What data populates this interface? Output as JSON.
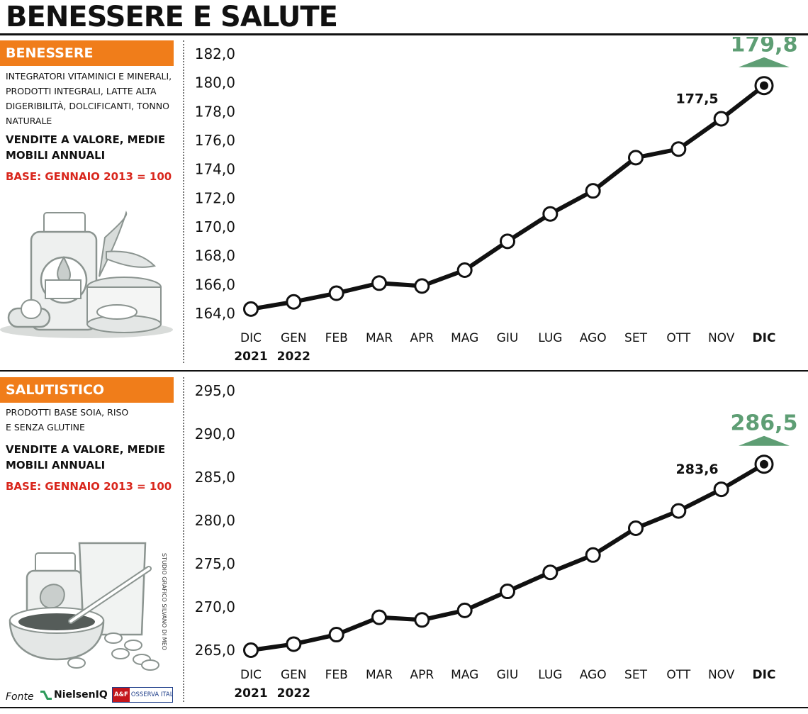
{
  "title": "BENESSERE E SALUTE",
  "source_label": "Fonte",
  "source_nielsen": "NielsenIQ",
  "source_osserva_mark": "A&F",
  "source_osserva": "OSSERVA ITALIA",
  "credit": "STUDIO GRAFICO SILVANO DI MEO",
  "colors": {
    "accent": "#f07d1a",
    "base_text": "#d9261c",
    "highlight": "#5e9e74",
    "line": "#111111"
  },
  "panels": [
    {
      "tag": "BENESSERE",
      "description": "INTEGRATORI VITAMINICI E MINERALI, PRODOTTI INTEGRALI, LATTE ALTA DIGERIBILITÀ, DOLCIFICANTI, TONNO NATURALE",
      "subtitle": "VENDITE A VALORE, MEDIE MOBILI ANNUALI",
      "base": "BASE: GENNAIO 2013 = 100"
    },
    {
      "tag": "SALUTISTICO",
      "description": "PRODOTTI BASE SOIA, RISO E SENZA GLUTINE",
      "subtitle": "VENDITE A VALORE, MEDIE MOBILI ANNUALI",
      "base": "BASE: GENNAIO 2013 = 100"
    }
  ],
  "chart_data": [
    {
      "type": "line",
      "x": [
        "DIC 2021",
        "GEN 2022",
        "FEB",
        "MAR",
        "APR",
        "MAG",
        "GIU",
        "LUG",
        "AGO",
        "SET",
        "OTT",
        "NOV",
        "DIC"
      ],
      "x_labels": [
        [
          "DIC",
          "2021"
        ],
        [
          "GEN",
          "2022"
        ],
        [
          "FEB"
        ],
        [
          "MAR"
        ],
        [
          "APR"
        ],
        [
          "MAG"
        ],
        [
          "GIU"
        ],
        [
          "LUG"
        ],
        [
          "AGO"
        ],
        [
          "SET"
        ],
        [
          "OTT"
        ],
        [
          "NOV"
        ],
        [
          "DIC"
        ]
      ],
      "values": [
        164.3,
        164.8,
        165.4,
        166.1,
        165.9,
        167.0,
        169.0,
        170.9,
        172.5,
        174.8,
        175.4,
        177.5,
        179.8
      ],
      "yticks": [
        "182,0",
        "180,0",
        "178,0",
        "176,0",
        "174,0",
        "172,0",
        "170,0",
        "168,0",
        "166,0",
        "164,0"
      ],
      "ylim": [
        164,
        182
      ],
      "labels": {
        "prev": "177,5",
        "last": "179,8"
      },
      "grid": false
    },
    {
      "type": "line",
      "x": [
        "DIC 2021",
        "GEN 2022",
        "FEB",
        "MAR",
        "APR",
        "MAG",
        "GIU",
        "LUG",
        "AGO",
        "SET",
        "OTT",
        "NOV",
        "DIC"
      ],
      "x_labels": [
        [
          "DIC",
          "2021"
        ],
        [
          "GEN",
          "2022"
        ],
        [
          "FEB"
        ],
        [
          "MAR"
        ],
        [
          "APR"
        ],
        [
          "MAG"
        ],
        [
          "GIU"
        ],
        [
          "LUG"
        ],
        [
          "AGO"
        ],
        [
          "SET"
        ],
        [
          "OTT"
        ],
        [
          "NOV"
        ],
        [
          "DIC"
        ]
      ],
      "values": [
        265.0,
        265.7,
        266.8,
        268.8,
        268.5,
        269.6,
        271.8,
        274.0,
        276.0,
        279.1,
        281.1,
        283.6,
        286.5
      ],
      "yticks": [
        "295,0",
        "290,0",
        "285,0",
        "280,0",
        "275,0",
        "270,0",
        "265,0"
      ],
      "ylim": [
        265,
        295
      ],
      "labels": {
        "prev": "283,6",
        "last": "286,5"
      },
      "grid": false
    }
  ]
}
